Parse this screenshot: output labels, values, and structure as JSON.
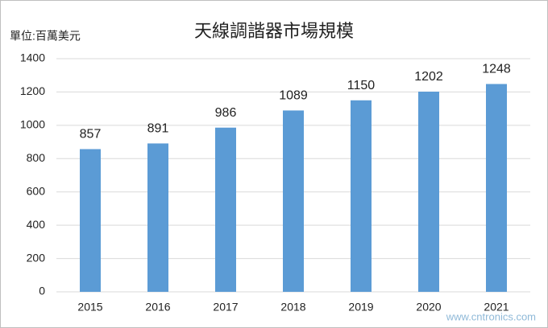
{
  "chart_data": {
    "type": "bar",
    "title": "天線調諧器市場規模",
    "y_label": "單位:百萬美元",
    "categories": [
      "2015",
      "2016",
      "2017",
      "2018",
      "2019",
      "2020",
      "2021"
    ],
    "values": [
      857,
      891,
      986,
      1089,
      1150,
      1202,
      1248
    ],
    "color": "#5b9bd5",
    "ylim": [
      0,
      1400
    ],
    "yticks": [
      0,
      200,
      400,
      600,
      800,
      1000,
      1200,
      1400
    ],
    "grid": true,
    "watermark": "www.cntronics.com"
  }
}
